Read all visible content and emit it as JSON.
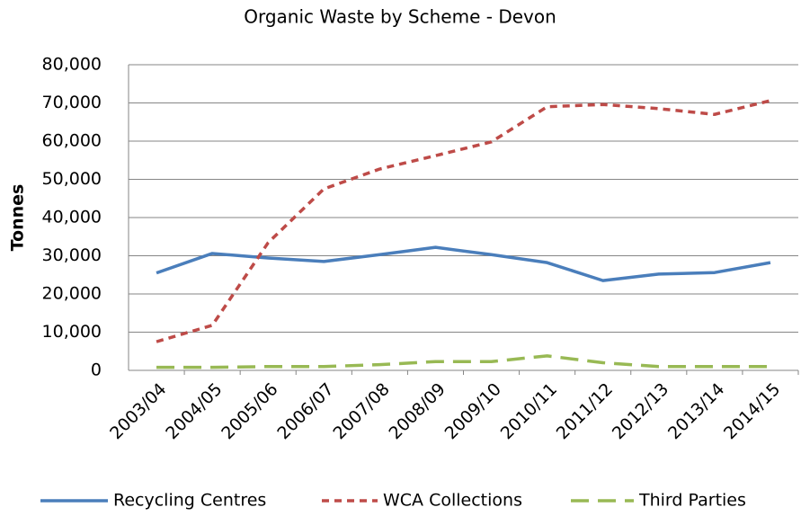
{
  "chart_data": {
    "type": "line",
    "title": "Organic Waste by Scheme - Devon",
    "y_label": "Tonnes",
    "categories": [
      "2003/04",
      "2004/05",
      "2005/06",
      "2006/07",
      "2007/08",
      "2008/09",
      "2009/10",
      "2010/11",
      "2011/12",
      "2012/13",
      "2013/14",
      "2014/15"
    ],
    "series": [
      {
        "name": "Recycling Centres",
        "color": "#4a7ebb",
        "dash": "solid",
        "values": [
          25500,
          30600,
          29400,
          28500,
          30300,
          32200,
          30300,
          28200,
          23500,
          25200,
          25600,
          28200
        ]
      },
      {
        "name": "WCA Collections",
        "color": "#be4b48",
        "dash": "short",
        "values": [
          7500,
          11800,
          33400,
          47500,
          52700,
          56200,
          59800,
          69000,
          69600,
          68500,
          67000,
          70600
        ]
      },
      {
        "name": "Third Parties",
        "color": "#98b954",
        "dash": "long",
        "values": [
          800,
          800,
          1000,
          1000,
          1500,
          2300,
          2300,
          3800,
          2000,
          1000,
          1000,
          1000
        ]
      }
    ],
    "ylim": [
      0,
      80000
    ],
    "yticks": [
      0,
      {
        "value": 10000,
        "label": "10,000"
      },
      {
        "value": 20000,
        "label": "20,000"
      },
      {
        "value": 30000,
        "label": "30,000"
      },
      {
        "value": 40000,
        "label": "40,000"
      },
      {
        "value": 50000,
        "label": "50,000"
      },
      {
        "value": 60000,
        "label": "60,000"
      },
      {
        "value": 70000,
        "label": "70,000"
      },
      {
        "value": 80000,
        "label": "80,000"
      }
    ],
    "grid": true,
    "legend": "bottom"
  }
}
